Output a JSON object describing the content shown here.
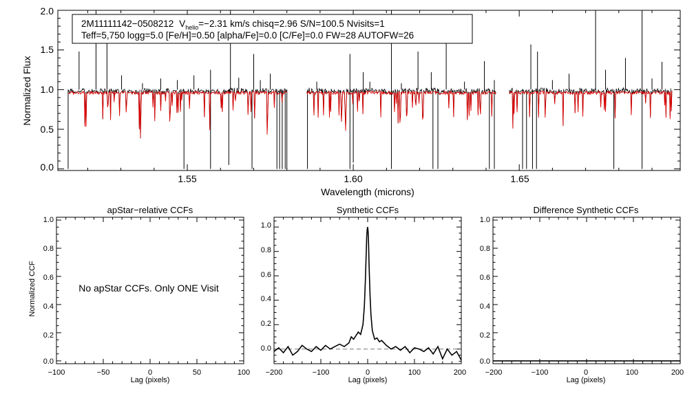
{
  "colors": {
    "observed": "#000000",
    "model": "#dd0000",
    "axis": "#000000",
    "baseline": "#777777",
    "background": "#ffffff"
  },
  "chart_data": [
    {
      "id": "spectrum",
      "type": "line",
      "xlabel": "Wavelength (microns)",
      "ylabel": "Normalized Flux",
      "xlim": [
        1.511,
        1.6985
      ],
      "ylim": [
        -0.02,
        2.0
      ],
      "xticks": [
        {
          "value": 1.55,
          "label": "1.55"
        },
        {
          "value": 1.6,
          "label": "1.60"
        },
        {
          "value": 1.65,
          "label": "1.65"
        }
      ],
      "yticks": [
        {
          "value": 0.0,
          "label": "0.0"
        },
        {
          "value": 0.5,
          "label": "0.5"
        },
        {
          "value": 1.0,
          "label": "1.0"
        },
        {
          "value": 1.5,
          "label": "1.5"
        },
        {
          "value": 2.0,
          "label": "2.0"
        }
      ],
      "segments": [
        [
          1.5141,
          1.58
        ],
        [
          1.586,
          1.643
        ],
        [
          1.647,
          1.696
        ]
      ],
      "emission_lines": [
        {
          "x": 1.5174,
          "y": 1.48
        },
        {
          "x": 1.5225,
          "y": 2.0
        },
        {
          "x": 1.5258,
          "y": 1.6
        },
        {
          "x": 1.5302,
          "y": 1.18
        },
        {
          "x": 1.5365,
          "y": 1.08
        },
        {
          "x": 1.542,
          "y": 1.14
        },
        {
          "x": 1.547,
          "y": 1.12
        },
        {
          "x": 1.552,
          "y": 1.18
        },
        {
          "x": 1.557,
          "y": 1.25
        },
        {
          "x": 1.563,
          "y": 2.0
        },
        {
          "x": 1.5655,
          "y": 1.15
        },
        {
          "x": 1.57,
          "y": 1.45
        },
        {
          "x": 1.572,
          "y": 1.12
        },
        {
          "x": 1.575,
          "y": 1.2
        },
        {
          "x": 1.589,
          "y": 1.1
        },
        {
          "x": 1.599,
          "y": 1.45
        },
        {
          "x": 1.603,
          "y": 1.22
        },
        {
          "x": 1.605,
          "y": 1.1
        },
        {
          "x": 1.6115,
          "y": 2.0
        },
        {
          "x": 1.6145,
          "y": 1.08
        },
        {
          "x": 1.6195,
          "y": 1.48
        },
        {
          "x": 1.6235,
          "y": 1.22
        },
        {
          "x": 1.628,
          "y": 1.6
        },
        {
          "x": 1.6335,
          "y": 1.1
        },
        {
          "x": 1.6395,
          "y": 1.36
        },
        {
          "x": 1.6425,
          "y": 1.12
        },
        {
          "x": 1.6535,
          "y": 1.57
        },
        {
          "x": 1.6555,
          "y": 1.48
        },
        {
          "x": 1.66,
          "y": 1.12
        },
        {
          "x": 1.665,
          "y": 1.2
        },
        {
          "x": 1.673,
          "y": 2.0
        },
        {
          "x": 1.676,
          "y": 1.25
        },
        {
          "x": 1.682,
          "y": 1.4
        },
        {
          "x": 1.687,
          "y": 2.0
        },
        {
          "x": 1.69,
          "y": 1.14
        },
        {
          "x": 1.693,
          "y": 1.35
        }
      ],
      "absorption_lines": [
        {
          "x": 1.5141,
          "y": 0.0
        },
        {
          "x": 1.549,
          "y": 0.0
        },
        {
          "x": 1.557,
          "y": 0.0
        },
        {
          "x": 1.5625,
          "y": 0.05
        },
        {
          "x": 1.5695,
          "y": 0.0
        },
        {
          "x": 1.577,
          "y": 0.0
        },
        {
          "x": 1.5778,
          "y": 0.0
        },
        {
          "x": 1.5786,
          "y": 0.0
        },
        {
          "x": 1.5795,
          "y": 0.0
        },
        {
          "x": 1.58,
          "y": 0.0
        },
        {
          "x": 1.5862,
          "y": 0.0
        },
        {
          "x": 1.599,
          "y": 0.0
        },
        {
          "x": 1.6,
          "y": 0.08
        },
        {
          "x": 1.6115,
          "y": 0.0
        },
        {
          "x": 1.624,
          "y": 0.0
        },
        {
          "x": 1.6255,
          "y": 0.0
        },
        {
          "x": 1.641,
          "y": 0.0
        },
        {
          "x": 1.6425,
          "y": 0.0
        },
        {
          "x": 1.651,
          "y": 0.0
        },
        {
          "x": 1.6522,
          "y": 0.0
        },
        {
          "x": 1.654,
          "y": 0.0
        },
        {
          "x": 1.6552,
          "y": 0.0
        },
        {
          "x": 1.6785,
          "y": 0.0
        },
        {
          "x": 1.687,
          "y": 0.0
        }
      ],
      "annotation": {
        "line1_name": "2M11111142−0508212",
        "line1_v": "V",
        "line1_helio": "helio",
        "line1_rest": "=−2.31 km/s  chisq=2.96  S/N=100.5  Nvisits=1",
        "line2": "Teff=5,750 logg=5.0 [Fe/H]=0.50 [alpha/Fe]=0.0 [C/Fe]=0.0 FW=28 AUTOFW=26"
      }
    },
    {
      "id": "apstar-ccf",
      "type": "line",
      "title": "apStar−relative CCFs",
      "xlabel": "Lag (pixels)",
      "ylabel": "Normalized CCF",
      "xlim": [
        -100,
        100
      ],
      "ylim": [
        -0.02,
        1.02
      ],
      "xticks": [
        {
          "value": -100,
          "label": "−100"
        },
        {
          "value": -50,
          "label": "−50"
        },
        {
          "value": 0,
          "label": "0"
        },
        {
          "value": 50,
          "label": "50"
        },
        {
          "value": 100,
          "label": "100"
        }
      ],
      "yticks": [
        {
          "value": 0.0,
          "label": "0.0"
        },
        {
          "value": 0.2,
          "label": "0.2"
        },
        {
          "value": 0.4,
          "label": "0.4"
        },
        {
          "value": 0.6,
          "label": "0.6"
        },
        {
          "value": 0.8,
          "label": "0.8"
        },
        {
          "value": 1.0,
          "label": "1.0"
        }
      ],
      "message": "No apStar CCFs.  Only ONE Visit"
    },
    {
      "id": "synthetic-ccf",
      "type": "line",
      "title": "Synthetic CCFs",
      "xlabel": "Lag (pixels)",
      "xlim": [
        -200,
        200
      ],
      "ylim": [
        -0.12,
        1.08
      ],
      "baseline": 0.0,
      "xticks": [
        {
          "value": -200,
          "label": "−200"
        },
        {
          "value": -100,
          "label": "−100"
        },
        {
          "value": 0,
          "label": "0"
        },
        {
          "value": 100,
          "label": "100"
        },
        {
          "value": 200,
          "label": "200"
        }
      ],
      "yticks": [
        {
          "value": 0.0,
          "label": "0.0"
        },
        {
          "value": 0.2,
          "label": "0.2"
        },
        {
          "value": 0.4,
          "label": "0.4"
        },
        {
          "value": 0.6,
          "label": "0.6"
        },
        {
          "value": 0.8,
          "label": "0.8"
        },
        {
          "value": 1.0,
          "label": "1.0"
        }
      ],
      "x": [
        -200,
        -190,
        -180,
        -170,
        -160,
        -150,
        -140,
        -130,
        -120,
        -110,
        -100,
        -90,
        -80,
        -70,
        -60,
        -50,
        -40,
        -35,
        -30,
        -25,
        -20,
        -15,
        -10,
        -7,
        -5,
        -3,
        -2,
        -1,
        0,
        1,
        2,
        3,
        5,
        7,
        10,
        15,
        20,
        25,
        30,
        35,
        40,
        50,
        60,
        70,
        80,
        90,
        100,
        110,
        120,
        130,
        140,
        150,
        160,
        170,
        180,
        190,
        200
      ],
      "y": [
        -0.02,
        0.01,
        -0.03,
        0.02,
        -0.05,
        -0.02,
        0.03,
        0.0,
        -0.02,
        0.02,
        -0.01,
        0.03,
        0.0,
        0.02,
        0.04,
        0.02,
        0.05,
        0.1,
        0.08,
        0.11,
        0.14,
        0.12,
        0.2,
        0.35,
        0.55,
        0.8,
        0.92,
        0.98,
        1.0,
        0.96,
        0.85,
        0.7,
        0.45,
        0.28,
        0.15,
        0.08,
        0.09,
        0.06,
        0.07,
        0.05,
        0.03,
        0.0,
        0.02,
        -0.01,
        0.02,
        -0.03,
        0.01,
        0.0,
        -0.02,
        0.01,
        -0.04,
        0.02,
        -0.08,
        0.0,
        -0.05,
        -0.02,
        -0.09
      ]
    },
    {
      "id": "difference-ccf",
      "type": "line",
      "title": "Difference Synthetic CCFs",
      "xlim": [
        -200,
        200
      ],
      "ylim": [
        -0.02,
        1.02
      ],
      "xlabel": "Lag (pixels)",
      "xticks": [
        {
          "value": -200,
          "label": "−200"
        },
        {
          "value": -100,
          "label": "−100"
        },
        {
          "value": 0,
          "label": "0"
        },
        {
          "value": 100,
          "label": "100"
        },
        {
          "value": 200,
          "label": "200"
        }
      ],
      "yticks": [
        {
          "value": 0.0,
          "label": "0.0"
        },
        {
          "value": 0.2,
          "label": "0.2"
        },
        {
          "value": 0.4,
          "label": "0.4"
        },
        {
          "value": 0.6,
          "label": "0.6"
        },
        {
          "value": 0.8,
          "label": "0.8"
        },
        {
          "value": 1.0,
          "label": "1.0"
        }
      ],
      "x": [
        -200,
        200
      ],
      "y": [
        0.0,
        0.0
      ]
    }
  ]
}
